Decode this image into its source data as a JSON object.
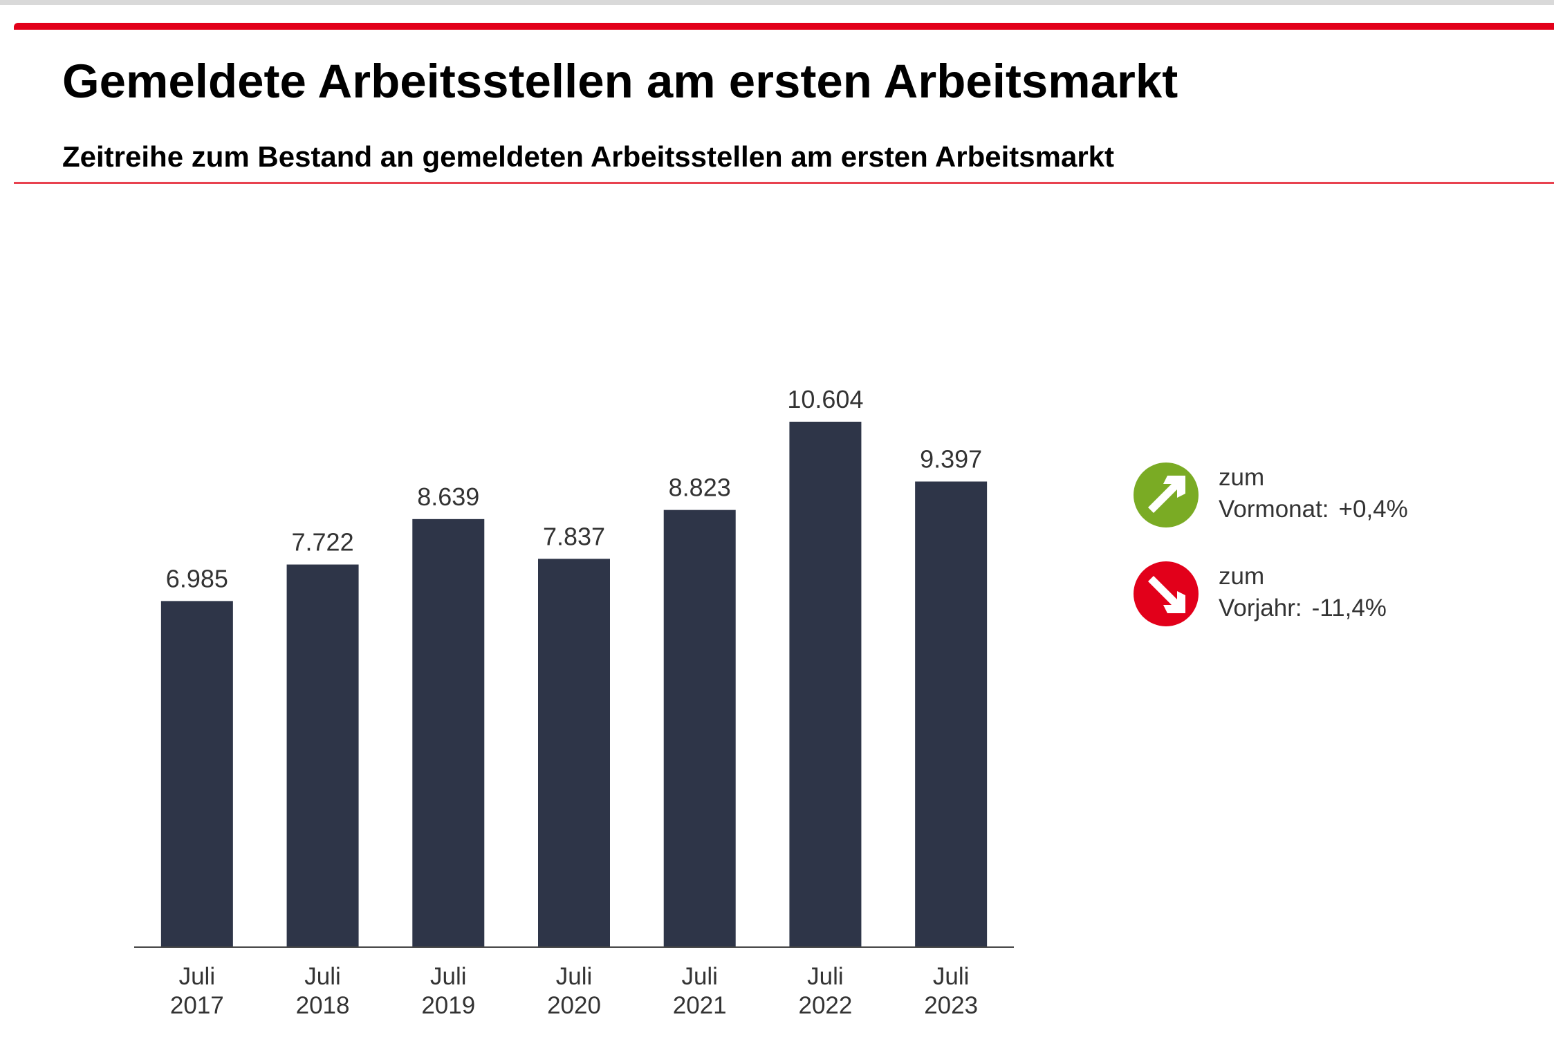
{
  "header": {
    "title": "Gemeldete Arbeitsstellen am ersten Arbeitsmarkt",
    "subtitle": "Zeitreihe zum Bestand an gemeldeten Arbeitsstellen am ersten Arbeitsmarkt"
  },
  "colors": {
    "brand_red": "#e2001a",
    "bar": "#2e3548",
    "up_green": "#7aab24",
    "down_red": "#e2001a"
  },
  "chart_data": {
    "type": "bar",
    "title": "Gemeldete Arbeitsstellen am ersten Arbeitsmarkt",
    "subtitle": "Zeitreihe zum Bestand an gemeldeten Arbeitsstellen am ersten Arbeitsmarkt",
    "categories": [
      [
        "Juli",
        "2017"
      ],
      [
        "Juli",
        "2018"
      ],
      [
        "Juli",
        "2019"
      ],
      [
        "Juli",
        "2020"
      ],
      [
        "Juli",
        "2021"
      ],
      [
        "Juli",
        "2022"
      ],
      [
        "Juli",
        "2023"
      ]
    ],
    "values": [
      6985,
      7722,
      8639,
      7837,
      8823,
      10604,
      9397
    ],
    "value_labels": [
      "6.985",
      "7.722",
      "8.639",
      "7.837",
      "8.823",
      "10.604",
      "9.397"
    ],
    "xlabel": "",
    "ylabel": "",
    "ylim": [
      0,
      10604
    ],
    "grid": false,
    "legend": "none"
  },
  "indicators": [
    {
      "icon": "arrow-up-right-icon",
      "line1": "zum",
      "label": "Vormonat:",
      "value": "+0,4%",
      "color": "#7aab24"
    },
    {
      "icon": "arrow-down-right-icon",
      "line1": "zum",
      "label": "Vorjahr:",
      "value": "-11,4%",
      "color": "#e2001a"
    }
  ]
}
